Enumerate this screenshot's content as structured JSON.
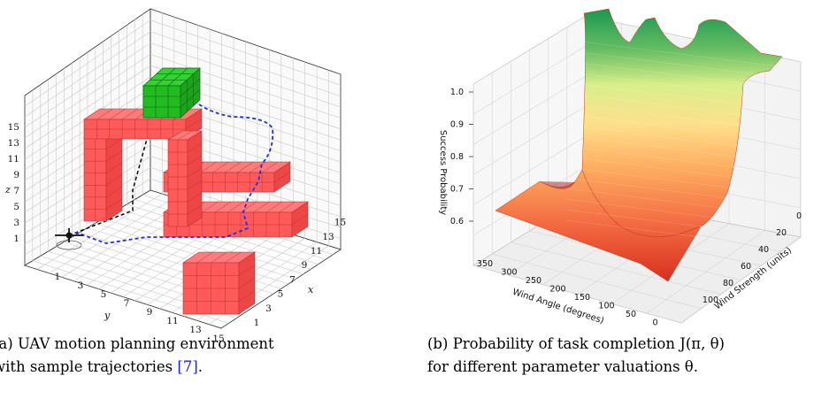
{
  "figure_a": {
    "caption": {
      "label": "(a)",
      "text_line1": "UAV motion planning environment",
      "text_line2_prefix": "with sample trajectories ",
      "ref": "[7]",
      "text_line2_suffix": "."
    },
    "z_ticks": [
      "15",
      "13",
      "11",
      "9",
      "7",
      "5",
      "3",
      "1"
    ],
    "y_ticks": [
      "1",
      "3",
      "5",
      "7",
      "9",
      "11",
      "13",
      "15"
    ],
    "x_ticks": [
      "1",
      "3",
      "5",
      "7",
      "9",
      "11",
      "13",
      "15"
    ],
    "z_label": "z",
    "y_label": "y",
    "x_label": "x",
    "colors": {
      "obstacle": "#ff5555",
      "goal": "#22bb22",
      "trajectory": "#1f2fe0",
      "drone": "#111111"
    }
  },
  "figure_b": {
    "caption": {
      "label": "(b)",
      "text_line1": "Probability of task completion J(π, θ)",
      "text_line2": "for different parameter valuations θ."
    },
    "chart_data": {
      "type": "surface",
      "zlabel": "Success Probability",
      "xlabel": "Wind Angle (degrees)",
      "ylabel": "Wind Strength (units)",
      "z_ticks": [
        "1.0",
        "0.9",
        "0.8",
        "0.7",
        "0.6"
      ],
      "x_ticks": [
        "350",
        "300",
        "250",
        "200",
        "150",
        "100",
        "50",
        "0"
      ],
      "y_ticks": [
        "0",
        "20",
        "40",
        "60",
        "80",
        "100"
      ],
      "zlim": [
        0.55,
        1.05
      ],
      "xlim": [
        0,
        360
      ],
      "ylim": [
        0,
        100
      ],
      "colormap": "RdYlGn"
    }
  }
}
